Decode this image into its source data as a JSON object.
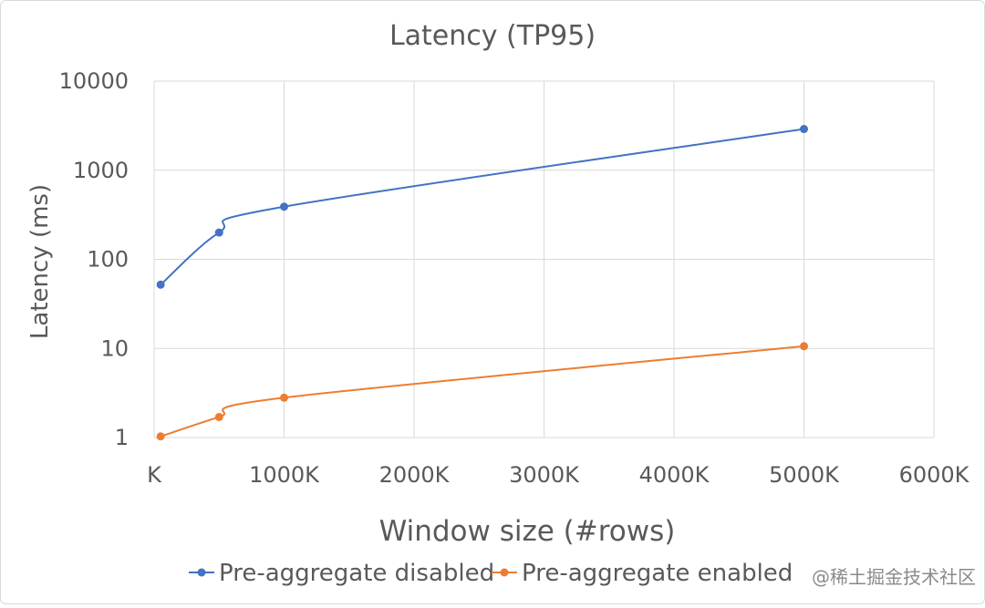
{
  "chart_data": {
    "type": "line",
    "title": "Latency (TP95)",
    "xlabel": "Window size (#rows)",
    "ylabel": "Latency (ms)",
    "x_scale": "linear",
    "y_scale": "log",
    "xlim": [
      0,
      6000
    ],
    "ylim": [
      1,
      10000
    ],
    "x_ticks": [
      {
        "value": 0,
        "label": "K"
      },
      {
        "value": 1000,
        "label": "1000K"
      },
      {
        "value": 2000,
        "label": "2000K"
      },
      {
        "value": 3000,
        "label": "3000K"
      },
      {
        "value": 4000,
        "label": "4000K"
      },
      {
        "value": 5000,
        "label": "5000K"
      },
      {
        "value": 6000,
        "label": "6000K"
      }
    ],
    "y_ticks": [
      {
        "value": 1,
        "label": "1"
      },
      {
        "value": 10,
        "label": "10"
      },
      {
        "value": 100,
        "label": "100"
      },
      {
        "value": 1000,
        "label": "1000"
      },
      {
        "value": 10000,
        "label": "10000"
      }
    ],
    "grid": true,
    "smooth_lines": true,
    "legend_position": "bottom",
    "series": [
      {
        "name": "Pre-aggregate disabled",
        "color": "#4472c4",
        "points": [
          {
            "x": 50,
            "y": 52
          },
          {
            "x": 500,
            "y": 200
          },
          {
            "x": 1000,
            "y": 390
          },
          {
            "x": 5000,
            "y": 2900
          }
        ]
      },
      {
        "name": "Pre-aggregate enabled",
        "color": "#ed7d31",
        "points": [
          {
            "x": 50,
            "y": 1.03
          },
          {
            "x": 500,
            "y": 1.7
          },
          {
            "x": 1000,
            "y": 2.8
          },
          {
            "x": 5000,
            "y": 10.6
          }
        ]
      }
    ]
  },
  "watermark": "@稀土掘金技术社区"
}
